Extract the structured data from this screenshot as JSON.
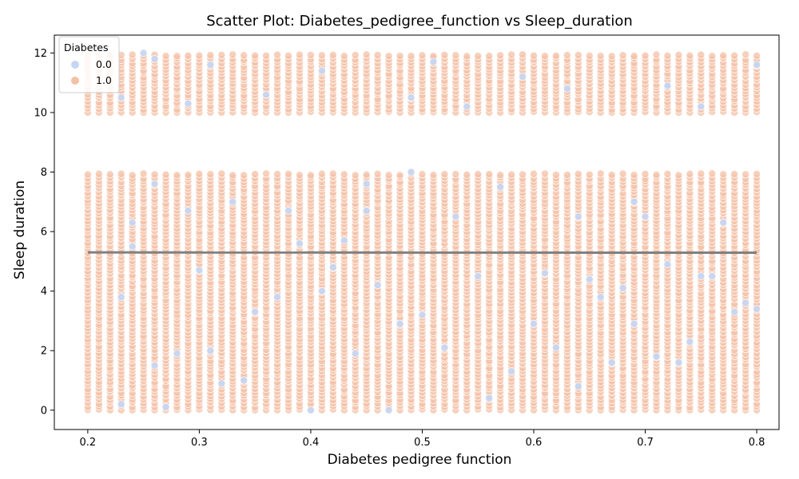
{
  "chart_data": {
    "type": "scatter",
    "title": "Scatter Plot: Diabetes_pedigree_function vs Sleep_duration",
    "xlabel": "Diabetes pedigree function",
    "ylabel": "Sleep duration",
    "xlim": [
      0.17,
      0.82
    ],
    "ylim": [
      -0.65,
      12.6
    ],
    "xticks": [
      0.2,
      0.3,
      0.4,
      0.5,
      0.6,
      0.7,
      0.8
    ],
    "xtick_labels": [
      "0.2",
      "0.3",
      "0.4",
      "0.5",
      "0.6",
      "0.7",
      "0.8"
    ],
    "yticks": [
      0,
      2,
      4,
      6,
      8,
      10,
      12
    ],
    "ytick_labels": [
      "0",
      "2",
      "4",
      "6",
      "8",
      "10",
      "12"
    ],
    "grid": false,
    "legend": {
      "title": "Diabetes",
      "placement": "upper-left",
      "entries": [
        {
          "label": "0.0",
          "color": "#c5d6f4"
        },
        {
          "label": "1.0",
          "color": "#f4c0a6"
        }
      ]
    },
    "x_discrete_values": [
      0.2,
      0.21,
      0.22,
      0.23,
      0.24,
      0.25,
      0.26,
      0.27,
      0.28,
      0.29,
      0.3,
      0.31,
      0.32,
      0.33,
      0.34,
      0.35,
      0.36,
      0.37,
      0.38,
      0.39,
      0.4,
      0.41,
      0.42,
      0.43,
      0.44,
      0.45,
      0.46,
      0.47,
      0.48,
      0.49,
      0.5,
      0.51,
      0.52,
      0.53,
      0.54,
      0.55,
      0.56,
      0.57,
      0.58,
      0.59,
      0.6,
      0.61,
      0.62,
      0.63,
      0.64,
      0.65,
      0.66,
      0.67,
      0.68,
      0.69,
      0.7,
      0.71,
      0.72,
      0.73,
      0.74,
      0.75,
      0.76,
      0.77,
      0.78,
      0.79,
      0.8
    ],
    "y_value_bands": [
      [
        0,
        8
      ],
      [
        10,
        12
      ]
    ],
    "series": [
      {
        "name": "1.0",
        "color": "#f4c0a6",
        "description_values": "dense points at every x value for y in 0–8 and 10–12"
      },
      {
        "name": "0.0",
        "color": "#c5d6f4",
        "points": [
          [
            0.23,
            0.2
          ],
          [
            0.23,
            3.8
          ],
          [
            0.23,
            10.5
          ],
          [
            0.24,
            6.3
          ],
          [
            0.24,
            5.5
          ],
          [
            0.25,
            12.0
          ],
          [
            0.26,
            1.5
          ],
          [
            0.26,
            7.6
          ],
          [
            0.26,
            11.8
          ],
          [
            0.27,
            0.1
          ],
          [
            0.28,
            1.9
          ],
          [
            0.29,
            6.7
          ],
          [
            0.29,
            10.3
          ],
          [
            0.3,
            4.7
          ],
          [
            0.31,
            2.0
          ],
          [
            0.31,
            11.6
          ],
          [
            0.32,
            0.9
          ],
          [
            0.33,
            7.0
          ],
          [
            0.34,
            1.0
          ],
          [
            0.35,
            3.3
          ],
          [
            0.36,
            10.6
          ],
          [
            0.37,
            3.8
          ],
          [
            0.38,
            6.7
          ],
          [
            0.39,
            5.6
          ],
          [
            0.4,
            0.0
          ],
          [
            0.41,
            4.0
          ],
          [
            0.41,
            11.4
          ],
          [
            0.42,
            4.8
          ],
          [
            0.43,
            5.7
          ],
          [
            0.44,
            1.9
          ],
          [
            0.45,
            6.7
          ],
          [
            0.45,
            7.6
          ],
          [
            0.46,
            4.2
          ],
          [
            0.47,
            0.0
          ],
          [
            0.48,
            2.9
          ],
          [
            0.49,
            8.0
          ],
          [
            0.49,
            10.5
          ],
          [
            0.5,
            3.2
          ],
          [
            0.51,
            11.7
          ],
          [
            0.52,
            2.1
          ],
          [
            0.53,
            6.5
          ],
          [
            0.54,
            10.2
          ],
          [
            0.55,
            4.5
          ],
          [
            0.56,
            0.4
          ],
          [
            0.57,
            7.5
          ],
          [
            0.58,
            1.3
          ],
          [
            0.59,
            11.2
          ],
          [
            0.6,
            2.9
          ],
          [
            0.61,
            4.6
          ],
          [
            0.62,
            2.1
          ],
          [
            0.63,
            10.8
          ],
          [
            0.64,
            6.5
          ],
          [
            0.64,
            0.8
          ],
          [
            0.65,
            4.4
          ],
          [
            0.66,
            3.8
          ],
          [
            0.67,
            1.6
          ],
          [
            0.68,
            4.1
          ],
          [
            0.69,
            7.0
          ],
          [
            0.69,
            2.9
          ],
          [
            0.7,
            6.5
          ],
          [
            0.71,
            1.8
          ],
          [
            0.72,
            10.9
          ],
          [
            0.72,
            4.9
          ],
          [
            0.73,
            1.6
          ],
          [
            0.74,
            2.3
          ],
          [
            0.75,
            4.5
          ],
          [
            0.75,
            10.2
          ],
          [
            0.76,
            4.5
          ],
          [
            0.77,
            6.3
          ],
          [
            0.78,
            3.3
          ],
          [
            0.79,
            3.6
          ],
          [
            0.8,
            3.4
          ],
          [
            0.8,
            11.6
          ]
        ]
      }
    ],
    "trend_line": {
      "x": [
        0.2,
        0.8
      ],
      "y": [
        5.3,
        5.29
      ],
      "color": "#808080"
    }
  }
}
